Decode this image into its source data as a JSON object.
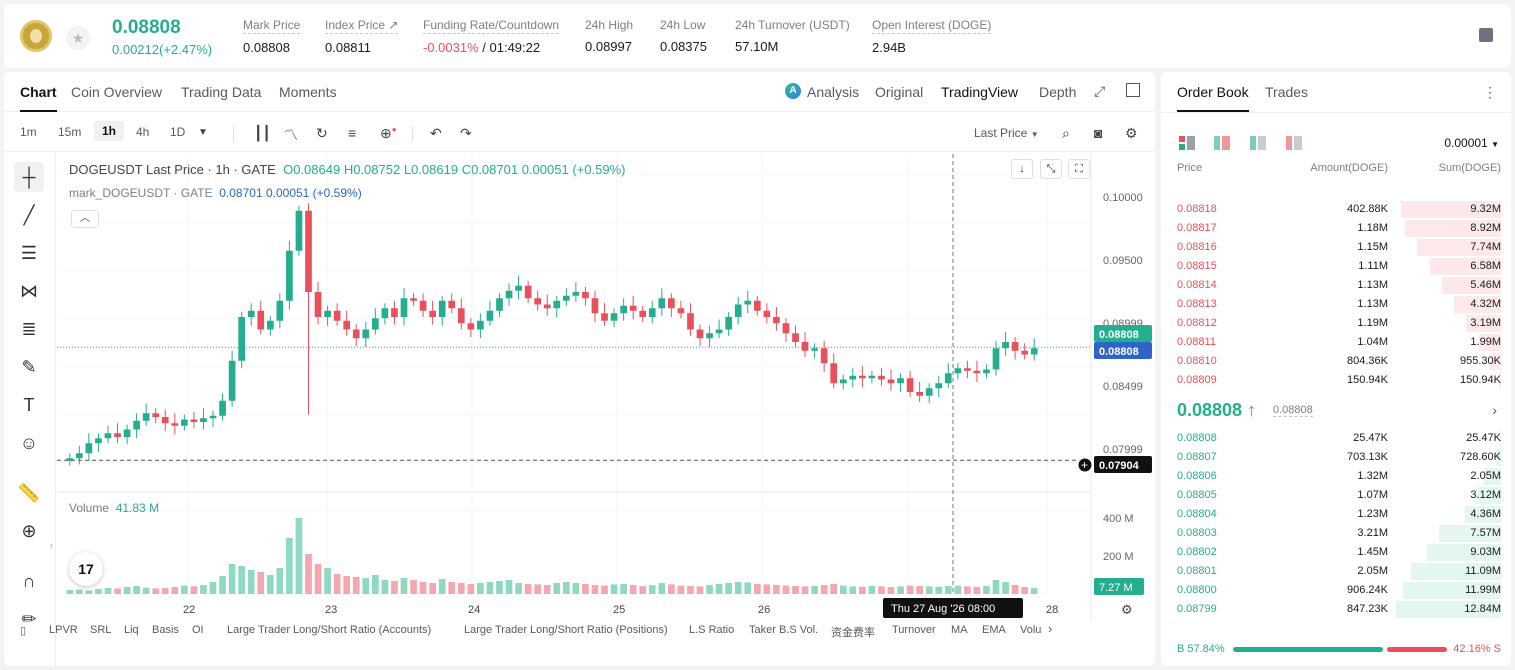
{
  "header": {
    "price": "0.08808",
    "change": "0.00212(+2.47%)",
    "stats": [
      {
        "label": "Mark Price",
        "value": "0.08808"
      },
      {
        "label": "Index Price ↗",
        "value": "0.08811"
      },
      {
        "label": "Funding Rate/Countdown",
        "value_red": "-0.0031%",
        "value": " / 01:49:22"
      },
      {
        "label": "24h High",
        "value": "0.08997"
      },
      {
        "label": "24h Low",
        "value": "0.08375"
      },
      {
        "label": "24h Turnover (USDT)",
        "value": "57.10M"
      },
      {
        "label": "Open Interest (DOGE)",
        "value": "2.94B"
      }
    ]
  },
  "chart_tabs": [
    "Chart",
    "Coin Overview",
    "Trading Data",
    "Moments"
  ],
  "view_tabs": [
    "Analysis",
    "Original",
    "TradingView",
    "Depth"
  ],
  "timeframes": [
    "1m",
    "15m",
    "1h",
    "4h",
    "1D"
  ],
  "last_price_label": "Last Price",
  "legend": {
    "symbol": "DOGEUSDT Last Price · 1h · GATE",
    "o": "O0.08649",
    "h": "H0.08752",
    "l": "L0.08619",
    "c": "C0.08701",
    "chg": "0.00051 (+0.59%)",
    "mark": "mark_DOGEUSDT · GATE",
    "mark_val": "0.08701 0.00051 (+0.59%)"
  },
  "volume": {
    "label": "Volume",
    "value": "41.83 M"
  },
  "chart_data": {
    "type": "candlestick",
    "title": "DOGEUSDT Last Price · 1h · GATE",
    "y_ticks": [
      "0.10000",
      "0.09500",
      "0.08999",
      "0.08499",
      "0.07999"
    ],
    "x_ticks": [
      "22",
      "23",
      "24",
      "25",
      "26",
      "28"
    ],
    "price_tags": [
      {
        "label": "0.08808",
        "color": "#24ae8f"
      },
      {
        "label": "0.08808",
        "color": "#2e64c8"
      },
      {
        "label": "0.07904",
        "color": "#111111"
      }
    ],
    "volume_ticks": [
      "400 M",
      "200 M"
    ],
    "volume_tag": "7.27 M",
    "crosshair_label": "Thu 27 Aug '26   08:00",
    "ylim": [
      0.0785,
      0.1005
    ],
    "close_series": [
      0.0792,
      0.0796,
      0.0804,
      0.0808,
      0.0812,
      0.0809,
      0.0815,
      0.0822,
      0.0828,
      0.0825,
      0.082,
      0.0818,
      0.0823,
      0.0821,
      0.0824,
      0.0826,
      0.0838,
      0.087,
      0.0905,
      0.091,
      0.0895,
      0.0902,
      0.0918,
      0.0958,
      0.099,
      0.0925,
      0.0905,
      0.091,
      0.0902,
      0.0895,
      0.0888,
      0.0895,
      0.0904,
      0.0912,
      0.0905,
      0.092,
      0.0918,
      0.091,
      0.0905,
      0.0918,
      0.0912,
      0.09,
      0.0895,
      0.0902,
      0.091,
      0.092,
      0.0926,
      0.093,
      0.092,
      0.0915,
      0.0912,
      0.0918,
      0.0922,
      0.0925,
      0.092,
      0.0908,
      0.0902,
      0.0908,
      0.0914,
      0.091,
      0.0905,
      0.0912,
      0.092,
      0.0912,
      0.0908,
      0.0895,
      0.0888,
      0.0892,
      0.0895,
      0.0905,
      0.0915,
      0.0918,
      0.091,
      0.0905,
      0.09,
      0.0892,
      0.0885,
      0.0878,
      0.088,
      0.0868,
      0.0852,
      0.0855,
      0.0858,
      0.0856,
      0.0858,
      0.0855,
      0.0852,
      0.0856,
      0.0845,
      0.0842,
      0.0848,
      0.0852,
      0.086,
      0.0864,
      0.0862,
      0.086,
      0.0863,
      0.088,
      0.0885,
      0.0878,
      0.0875,
      0.088
    ],
    "volume_series": [
      20,
      22,
      18,
      25,
      30,
      28,
      35,
      40,
      32,
      28,
      30,
      35,
      42,
      38,
      45,
      60,
      90,
      150,
      140,
      120,
      110,
      95,
      130,
      280,
      380,
      200,
      150,
      130,
      100,
      90,
      85,
      80,
      95,
      70,
      65,
      80,
      70,
      60,
      55,
      75,
      60,
      55,
      50,
      55,
      60,
      65,
      70,
      55,
      50,
      48,
      45,
      55,
      60,
      55,
      50,
      45,
      42,
      48,
      50,
      45,
      40,
      44,
      55,
      48,
      42,
      40,
      38,
      45,
      50,
      55,
      60,
      58,
      50,
      48,
      45,
      42,
      40,
      38,
      40,
      45,
      50,
      42,
      38,
      36,
      40,
      38,
      35,
      38,
      42,
      40,
      38,
      36,
      40,
      42,
      38,
      36,
      40,
      70,
      60,
      45,
      35,
      30
    ]
  },
  "left_tools": [
    "crosshair",
    "trend-line",
    "horizontal-lines",
    "path-tool",
    "fib-retracement",
    "brush",
    "text",
    "emoji",
    "ruler",
    "zoom-in",
    "magnet",
    "pencil"
  ],
  "bottom_tabs": [
    "LPVR",
    "SRL",
    "Liq",
    "Basis",
    "OI",
    "Large Trader Long/Short Ratio (Accounts)",
    "Large Trader Long/Short Ratio (Positions)",
    "L.S Ratio",
    "Taker B.S Vol.",
    "资金费率",
    "Turnover",
    "MA",
    "EMA",
    "Volu"
  ],
  "orderbook": {
    "tabs": [
      "Order Book",
      "Trades"
    ],
    "precision": "0.00001",
    "headers": [
      "Price",
      "Amount(DOGE)",
      "Sum(DOGE)"
    ],
    "asks": [
      {
        "p": "0.08818",
        "a": "402.88K",
        "s": "9.32M",
        "depth": 0.95
      },
      {
        "p": "0.08817",
        "a": "1.18M",
        "s": "8.92M",
        "depth": 0.91
      },
      {
        "p": "0.08816",
        "a": "1.15M",
        "s": "7.74M",
        "depth": 0.8
      },
      {
        "p": "0.08815",
        "a": "1.11M",
        "s": "6.58M",
        "depth": 0.68
      },
      {
        "p": "0.08814",
        "a": "1.13M",
        "s": "5.46M",
        "depth": 0.56
      },
      {
        "p": "0.08813",
        "a": "1.13M",
        "s": "4.32M",
        "depth": 0.45
      },
      {
        "p": "0.08812",
        "a": "1.19M",
        "s": "3.19M",
        "depth": 0.33
      },
      {
        "p": "0.08811",
        "a": "1.04M",
        "s": "1.99M",
        "depth": 0.21
      },
      {
        "p": "0.08810",
        "a": "804.36K",
        "s": "955.30K",
        "depth": 0.1
      },
      {
        "p": "0.08809",
        "a": "150.94K",
        "s": "150.94K",
        "depth": 0.02
      }
    ],
    "mid_price": "0.08808 ↑",
    "mid_mark": "0.08808",
    "bids": [
      {
        "p": "0.08808",
        "a": "25.47K",
        "s": "25.47K",
        "depth": 0.01
      },
      {
        "p": "0.08807",
        "a": "703.13K",
        "s": "728.60K",
        "depth": 0.05
      },
      {
        "p": "0.08806",
        "a": "1.32M",
        "s": "2.05M",
        "depth": 0.16
      },
      {
        "p": "0.08805",
        "a": "1.07M",
        "s": "3.12M",
        "depth": 0.24
      },
      {
        "p": "0.08804",
        "a": "1.23M",
        "s": "4.36M",
        "depth": 0.34
      },
      {
        "p": "0.08803",
        "a": "3.21M",
        "s": "7.57M",
        "depth": 0.59
      },
      {
        "p": "0.08802",
        "a": "1.45M",
        "s": "9.03M",
        "depth": 0.7
      },
      {
        "p": "0.08801",
        "a": "2.05M",
        "s": "11.09M",
        "depth": 0.86
      },
      {
        "p": "0.08800",
        "a": "906.24K",
        "s": "11.99M",
        "depth": 0.93
      },
      {
        "p": "0.08799",
        "a": "847.23K",
        "s": "12.84M",
        "depth": 1.0
      }
    ],
    "buy_ratio": "B 57.84%",
    "sell_ratio": "42.16% S"
  }
}
